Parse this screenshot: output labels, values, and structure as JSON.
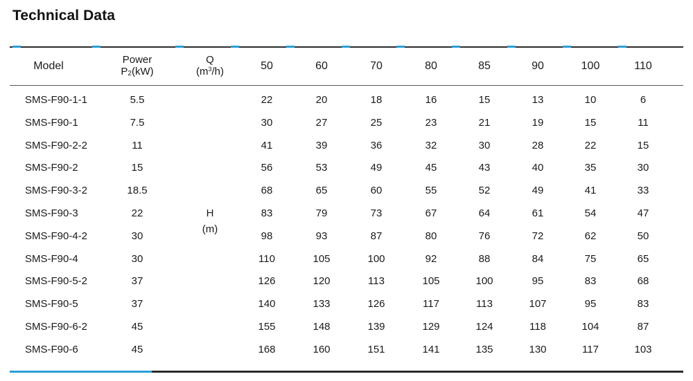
{
  "title": "Technical Data",
  "headers": {
    "model": "Model",
    "power_line1": "Power",
    "power_p": "P",
    "power_sub": "2",
    "power_unit": "(kW)",
    "q_line1": "Q",
    "q_unit_a": "(m",
    "q_unit_sup": "3",
    "q_unit_b": "/h)",
    "flows": [
      "50",
      "60",
      "70",
      "80",
      "85",
      "90",
      "100",
      "110"
    ]
  },
  "h_label": "H",
  "h_unit": "(m)",
  "rows": [
    {
      "model": "SMS-F90-1-1",
      "power": "5.5",
      "h": [
        "22",
        "20",
        "18",
        "16",
        "15",
        "13",
        "10",
        "6"
      ]
    },
    {
      "model": "SMS-F90-1",
      "power": "7.5",
      "h": [
        "30",
        "27",
        "25",
        "23",
        "21",
        "19",
        "15",
        "11"
      ]
    },
    {
      "model": "SMS-F90-2-2",
      "power": "11",
      "h": [
        "41",
        "39",
        "36",
        "32",
        "30",
        "28",
        "22",
        "15"
      ]
    },
    {
      "model": "SMS-F90-2",
      "power": "15",
      "h": [
        "56",
        "53",
        "49",
        "45",
        "43",
        "40",
        "35",
        "30"
      ]
    },
    {
      "model": "SMS-F90-3-2",
      "power": "18.5",
      "h": [
        "68",
        "65",
        "60",
        "55",
        "52",
        "49",
        "41",
        "33"
      ]
    },
    {
      "model": "SMS-F90-3",
      "power": "22",
      "h": [
        "83",
        "79",
        "73",
        "67",
        "64",
        "61",
        "54",
        "47"
      ]
    },
    {
      "model": "SMS-F90-4-2",
      "power": "30",
      "h": [
        "98",
        "93",
        "87",
        "80",
        "76",
        "72",
        "62",
        "50"
      ]
    },
    {
      "model": "SMS-F90-4",
      "power": "30",
      "h": [
        "110",
        "105",
        "100",
        "92",
        "88",
        "84",
        "75",
        "65"
      ]
    },
    {
      "model": "SMS-F90-5-2",
      "power": "37",
      "h": [
        "126",
        "120",
        "113",
        "105",
        "100",
        "95",
        "83",
        "68"
      ]
    },
    {
      "model": "SMS-F90-5",
      "power": "37",
      "h": [
        "140",
        "133",
        "126",
        "117",
        "113",
        "107",
        "95",
        "83"
      ]
    },
    {
      "model": "SMS-F90-6-2",
      "power": "45",
      "h": [
        "155",
        "148",
        "139",
        "129",
        "124",
        "118",
        "104",
        "87"
      ]
    },
    {
      "model": "SMS-F90-6",
      "power": "45",
      "h": [
        "168",
        "160",
        "151",
        "141",
        "135",
        "130",
        "117",
        "103"
      ]
    }
  ],
  "colors": {
    "accent": "#2a9fd6",
    "rule": "#2b2b2b"
  }
}
